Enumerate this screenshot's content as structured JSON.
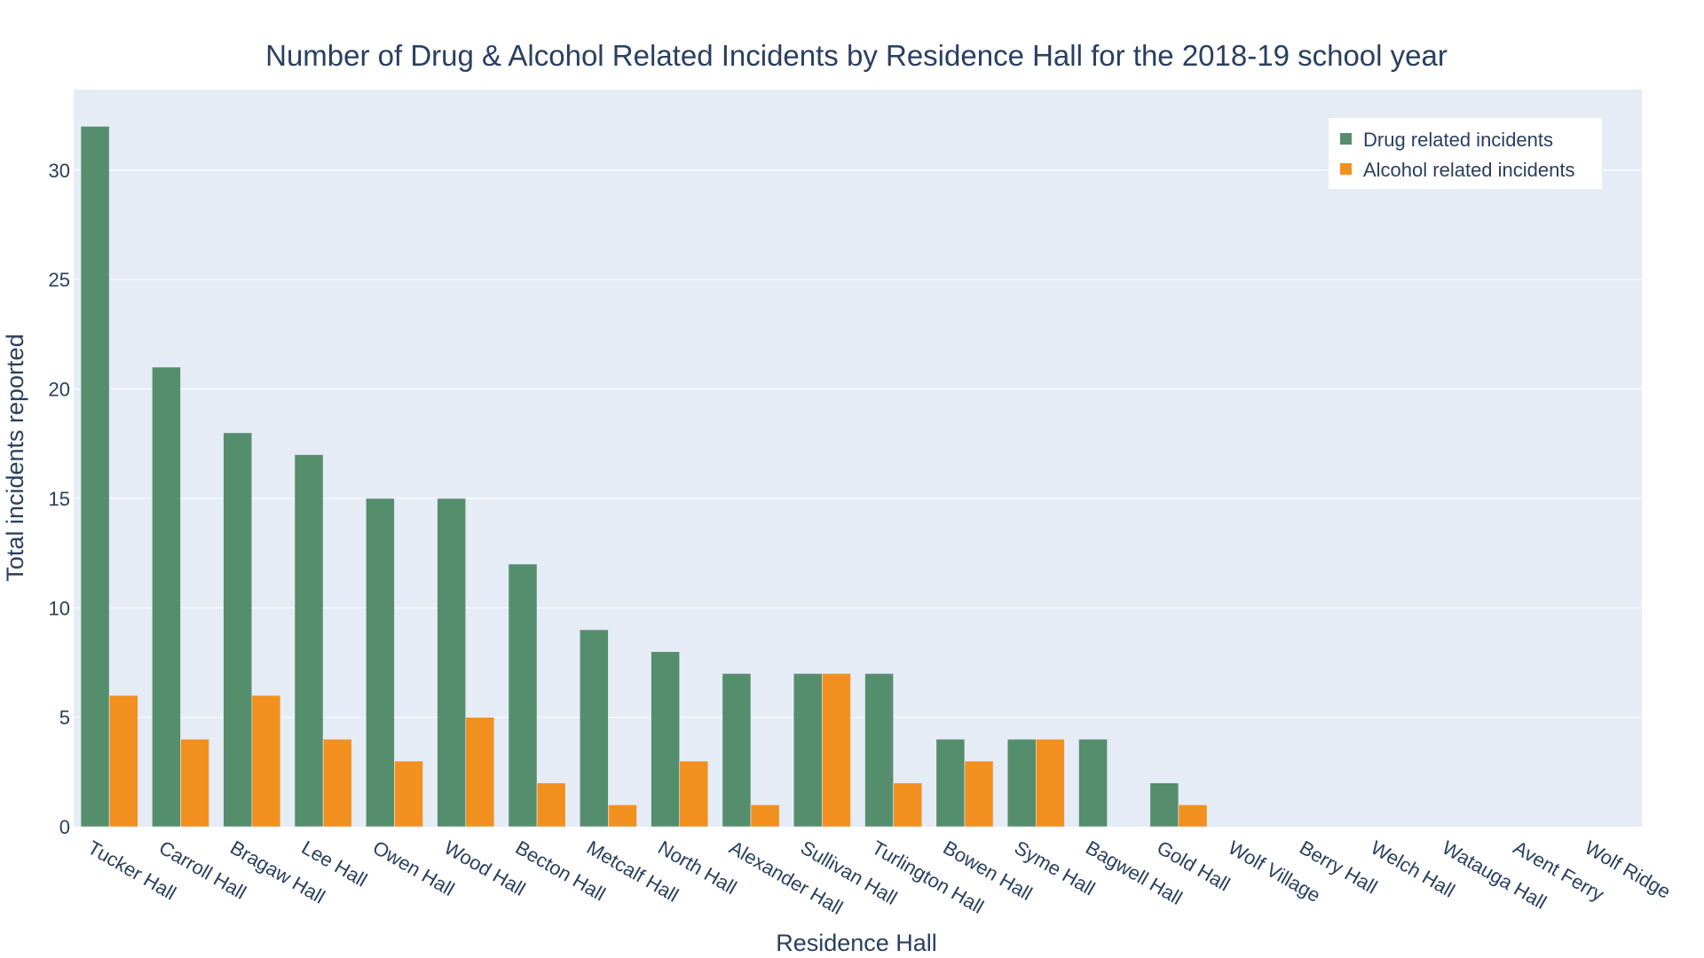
{
  "chart_data": {
    "type": "bar",
    "title": "Number of Drug & Alcohol Related Incidents by Residence Hall for the 2018-19 school year",
    "xlabel": "Residence Hall",
    "ylabel": "Total incidents reported",
    "ylim": [
      0,
      33.68
    ],
    "yticks": [
      0,
      5,
      10,
      15,
      20,
      25,
      30
    ],
    "grid": true,
    "legend_position": "top-right",
    "categories": [
      "Tucker Hall",
      "Carroll Hall",
      "Bragaw Hall",
      "Lee Hall",
      "Owen Hall",
      "Wood Hall",
      "Becton Hall",
      "Metcalf Hall",
      "North Hall",
      "Alexander Hall",
      "Sullivan Hall",
      "Turlington Hall",
      "Bowen Hall",
      "Syme Hall",
      "Bagwell Hall",
      "Gold Hall",
      "Wolf Village",
      "Berry Hall",
      "Welch Hall",
      "Watauga Hall",
      "Avent Ferry",
      "Wolf Ridge"
    ],
    "series": [
      {
        "name": "Drug related incidents",
        "color": "#558e6d",
        "values": [
          32,
          21,
          18,
          17,
          15,
          15,
          12,
          9,
          8,
          7,
          7,
          7,
          4,
          4,
          4,
          2,
          0,
          0,
          0,
          0,
          0,
          0
        ]
      },
      {
        "name": "Alcohol related incidents",
        "color": "#f2901f",
        "values": [
          6,
          4,
          6,
          4,
          3,
          5,
          2,
          1,
          3,
          1,
          7,
          2,
          3,
          4,
          0,
          1,
          0,
          0,
          0,
          0,
          0,
          0
        ]
      }
    ]
  },
  "colors": {
    "plot_background": "#e5ecf6",
    "text": "#2a3f5f",
    "gridline": "#ffffff"
  }
}
